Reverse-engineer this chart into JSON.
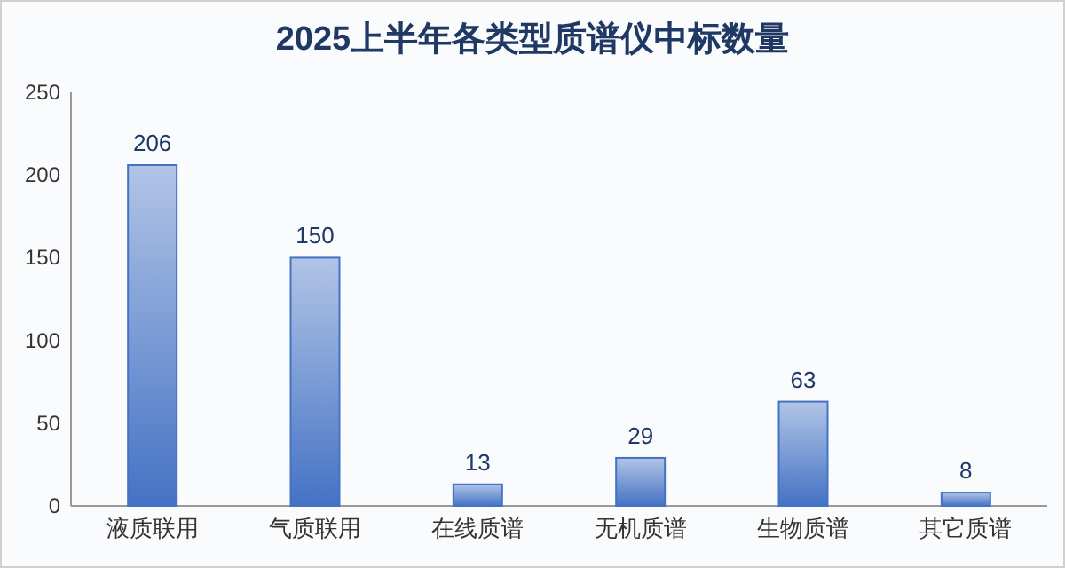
{
  "chart_data": {
    "type": "bar",
    "title": "2025上半年各类型质谱仪中标数量",
    "categories": [
      "液质联用",
      "气质联用",
      "在线质谱",
      "无机质谱",
      "生物质谱",
      "其它质谱"
    ],
    "values": [
      206,
      150,
      13,
      29,
      63,
      8
    ],
    "color": "#4472c4",
    "ylim": [
      0,
      250
    ],
    "yticks": [
      0,
      50,
      100,
      150,
      200,
      250
    ],
    "data_labels": true
  }
}
